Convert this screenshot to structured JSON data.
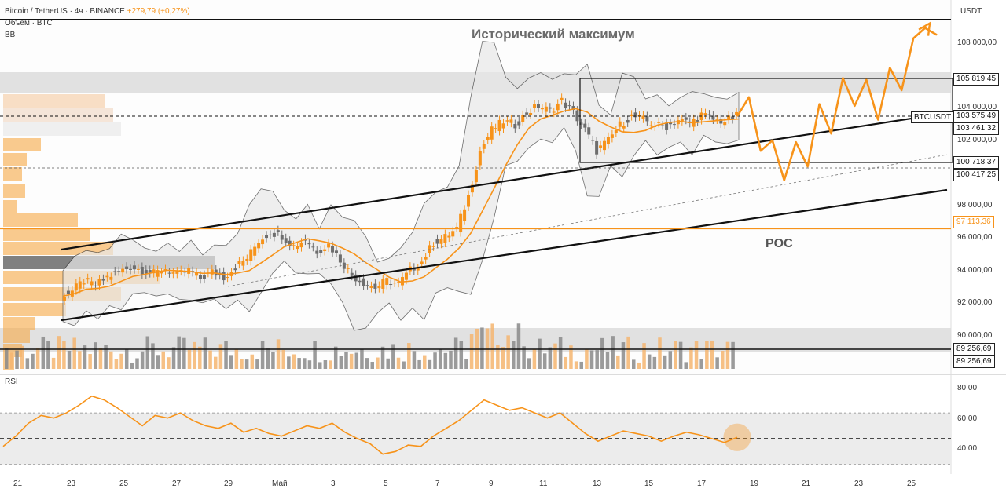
{
  "header": {
    "symbol": "Bitcoin / TetherUS · 4ч · BINANCE",
    "change": "+279,79 (+0,27%)",
    "volume_label": "Объём · BTC",
    "indicator": "BB"
  },
  "annotations": {
    "ath": "Исторический максимум",
    "poc": "POC",
    "symbol_tag": "BTCUSDT"
  },
  "axis": {
    "title": "USDT"
  },
  "price_ticks": [
    "108 000,00",
    "104 000,00",
    "102 000,00",
    "98 000,00",
    "96 000,00",
    "94 000,00",
    "92 000,00",
    "90 000,00"
  ],
  "price_labels": [
    "105 819,45",
    "103 575,49",
    "103 461,32",
    "100 718,37",
    "100 417,25",
    "97 113,36",
    "89 256,69",
    "89 256,69"
  ],
  "rsi": {
    "title": "RSI",
    "ticks": [
      "80,00",
      "60,00",
      "40,00"
    ]
  },
  "x_ticks": [
    "21",
    "23",
    "25",
    "27",
    "29",
    "Май",
    "3",
    "5",
    "7",
    "9",
    "11",
    "13",
    "15",
    "17",
    "19",
    "21",
    "23",
    "25"
  ],
  "colors": {
    "orange": "#f7931a",
    "grey": "#6e6e6e",
    "band_fill": "#e8e8e8",
    "zone": "#d9d9d9"
  },
  "chart_data": {
    "type": "line",
    "ylim": [
      89000,
      109500
    ],
    "price_path": [
      93200,
      93500,
      94100,
      93800,
      94300,
      94600,
      94900,
      94700,
      94500,
      94800,
      94400,
      94700,
      94200,
      94600,
      94300,
      94900,
      95400,
      96400,
      96900,
      96700,
      96100,
      96500,
      95800,
      96200,
      95300,
      94400,
      94000,
      93700,
      94100,
      93900,
      94700,
      95200,
      96300,
      96600,
      97100,
      99000,
      101600,
      102800,
      103300,
      103100,
      103800,
      104200,
      103900,
      104500,
      103800,
      102800,
      101600,
      102200,
      103100,
      103600,
      103400,
      103100,
      103000,
      103400,
      103200,
      103700,
      103400,
      103300,
      103600
    ],
    "forecast_path": [
      103600,
      104700,
      101600,
      102200,
      99900,
      102100,
      100700,
      104300,
      102600,
      105800,
      104200,
      105700,
      103400,
      106400,
      105100,
      108100,
      108700,
      108300
    ],
    "ath_level": 109200,
    "poc_level": 97113.36,
    "rsi_values": [
      44,
      52,
      62,
      68,
      66,
      70,
      76,
      83,
      80,
      74,
      67,
      60,
      68,
      66,
      70,
      64,
      60,
      58,
      62,
      55,
      58,
      54,
      52,
      56,
      60,
      58,
      62,
      55,
      50,
      46,
      38,
      40,
      45,
      44,
      52,
      58,
      64,
      72,
      80,
      76,
      72,
      74,
      70,
      66,
      70,
      62,
      54,
      48,
      52,
      56,
      54,
      52,
      48,
      52,
      55,
      53,
      50,
      47,
      51
    ],
    "rsi_ylim": [
      28,
      92
    ]
  }
}
